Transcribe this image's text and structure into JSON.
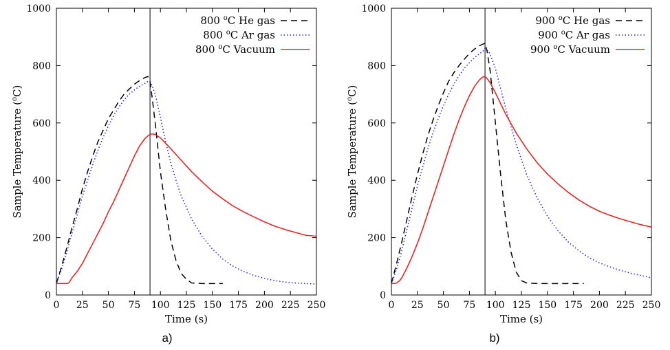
{
  "chart_data": [
    {
      "panel_label": "a)",
      "type": "line",
      "xlabel": "Time (s)",
      "ylabel": "Sample Temperature (°C)",
      "ylabel_parts": {
        "pre": "Sample Temperature (",
        "sup": "o",
        "post": "C)"
      },
      "xlim": [
        0,
        250
      ],
      "ylim": [
        0,
        1000
      ],
      "xticks": [
        0,
        25,
        50,
        75,
        100,
        125,
        150,
        175,
        200,
        225,
        250
      ],
      "yticks": [
        0,
        200,
        400,
        600,
        800,
        1000
      ],
      "grid": false,
      "legend_position": "top-right",
      "vline_x": 90,
      "series": [
        {
          "name": "800 °C He gas",
          "name_parts": {
            "pre": "800 ",
            "sup": "o",
            "post": "C He gas"
          },
          "color": "#000000",
          "style": "dashed",
          "x": [
            0,
            5,
            10,
            15,
            20,
            25,
            30,
            35,
            40,
            45,
            50,
            55,
            60,
            65,
            70,
            75,
            80,
            85,
            88,
            90,
            92,
            95,
            100,
            105,
            110,
            115,
            120,
            125,
            130,
            140,
            150,
            160
          ],
          "y": [
            40,
            100,
            165,
            235,
            300,
            370,
            430,
            485,
            535,
            575,
            615,
            645,
            675,
            700,
            718,
            735,
            748,
            758,
            762,
            745,
            690,
            600,
            430,
            300,
            190,
            120,
            75,
            55,
            42,
            40,
            40,
            40
          ]
        },
        {
          "name": "800 °C Ar gas",
          "name_parts": {
            "pre": "800 ",
            "sup": "o",
            "post": "C Ar gas"
          },
          "color": "#2222cc",
          "style": "dotted",
          "x": [
            0,
            5,
            10,
            15,
            20,
            25,
            30,
            35,
            40,
            45,
            50,
            55,
            60,
            65,
            70,
            75,
            80,
            85,
            88,
            90,
            92,
            95,
            100,
            105,
            110,
            115,
            120,
            130,
            140,
            150,
            160,
            170,
            180,
            190,
            200,
            210,
            220,
            230,
            240,
            250
          ],
          "y": [
            40,
            90,
            150,
            215,
            280,
            345,
            400,
            455,
            505,
            550,
            590,
            625,
            655,
            680,
            700,
            715,
            728,
            738,
            745,
            745,
            730,
            700,
            620,
            535,
            460,
            400,
            345,
            265,
            205,
            160,
            125,
            100,
            82,
            68,
            58,
            50,
            45,
            42,
            40,
            38
          ]
        },
        {
          "name": "800 °C Vacuum",
          "name_parts": {
            "pre": "800 ",
            "sup": "o",
            "post": "C Vacuum"
          },
          "color": "#ee2222",
          "style": "solid",
          "x": [
            0,
            5,
            10,
            12,
            15,
            20,
            25,
            30,
            35,
            40,
            45,
            50,
            55,
            60,
            65,
            70,
            75,
            80,
            85,
            88,
            90,
            92,
            95,
            100,
            110,
            120,
            130,
            140,
            150,
            160,
            170,
            180,
            190,
            200,
            210,
            220,
            230,
            240,
            250
          ],
          "y": [
            40,
            40,
            40,
            42,
            60,
            82,
            110,
            145,
            180,
            215,
            250,
            290,
            325,
            365,
            405,
            445,
            485,
            520,
            545,
            555,
            560,
            562,
            560,
            548,
            510,
            470,
            430,
            395,
            362,
            335,
            310,
            290,
            272,
            255,
            240,
            228,
            218,
            208,
            205
          ]
        }
      ]
    },
    {
      "panel_label": "b)",
      "type": "line",
      "xlabel": "Time (s)",
      "ylabel": "Sample Temperature (°C)",
      "ylabel_parts": {
        "pre": "Sample Temperature (",
        "sup": "o",
        "post": "C)"
      },
      "xlim": [
        0,
        250
      ],
      "ylim": [
        0,
        1000
      ],
      "xticks": [
        0,
        25,
        50,
        75,
        100,
        125,
        150,
        175,
        200,
        225,
        250
      ],
      "yticks": [
        0,
        200,
        400,
        600,
        800,
        1000
      ],
      "grid": false,
      "legend_position": "top-right",
      "vline_x": 90,
      "series": [
        {
          "name": "900 °C He gas",
          "name_parts": {
            "pre": "900 ",
            "sup": "o",
            "post": "C He gas"
          },
          "color": "#000000",
          "style": "dashed",
          "x": [
            0,
            5,
            10,
            15,
            20,
            25,
            30,
            35,
            40,
            45,
            50,
            55,
            60,
            65,
            70,
            75,
            80,
            85,
            88,
            90,
            92,
            95,
            100,
            105,
            110,
            115,
            120,
            125,
            130,
            140,
            150,
            160,
            170,
            180,
            185
          ],
          "y": [
            40,
            110,
            185,
            265,
            345,
            420,
            490,
            555,
            610,
            660,
            705,
            745,
            775,
            800,
            822,
            842,
            858,
            870,
            875,
            878,
            850,
            780,
            600,
            420,
            260,
            150,
            80,
            50,
            42,
            40,
            40,
            40,
            40,
            40,
            40
          ]
        },
        {
          "name": "900 °C Ar gas",
          "name_parts": {
            "pre": "900 ",
            "sup": "o",
            "post": "C Ar gas"
          },
          "color": "#2222cc",
          "style": "dotted",
          "x": [
            0,
            5,
            10,
            15,
            20,
            25,
            30,
            35,
            40,
            45,
            50,
            55,
            60,
            65,
            70,
            75,
            80,
            85,
            88,
            90,
            92,
            95,
            100,
            110,
            120,
            130,
            140,
            150,
            160,
            170,
            180,
            190,
            200,
            210,
            220,
            230,
            240,
            250
          ],
          "y": [
            40,
            90,
            155,
            230,
            305,
            380,
            445,
            510,
            565,
            615,
            660,
            700,
            735,
            765,
            790,
            810,
            828,
            842,
            850,
            860,
            855,
            840,
            790,
            650,
            525,
            420,
            340,
            275,
            225,
            185,
            155,
            130,
            112,
            98,
            86,
            76,
            68,
            60
          ]
        },
        {
          "name": "900 °C Vacuum",
          "name_parts": {
            "pre": "900 ",
            "sup": "o",
            "post": "C Vacuum"
          },
          "color": "#ee2222",
          "style": "solid",
          "x": [
            0,
            3,
            5,
            8,
            10,
            15,
            20,
            25,
            30,
            35,
            40,
            45,
            50,
            55,
            60,
            65,
            70,
            75,
            80,
            85,
            88,
            90,
            92,
            95,
            100,
            110,
            120,
            130,
            140,
            150,
            160,
            170,
            180,
            190,
            200,
            210,
            220,
            230,
            240,
            250
          ],
          "y": [
            40,
            40,
            42,
            50,
            60,
            95,
            135,
            180,
            230,
            285,
            340,
            395,
            450,
            505,
            560,
            610,
            655,
            695,
            728,
            752,
            760,
            762,
            755,
            740,
            705,
            630,
            565,
            510,
            462,
            422,
            388,
            358,
            332,
            310,
            292,
            278,
            266,
            255,
            245,
            237
          ]
        }
      ]
    }
  ]
}
